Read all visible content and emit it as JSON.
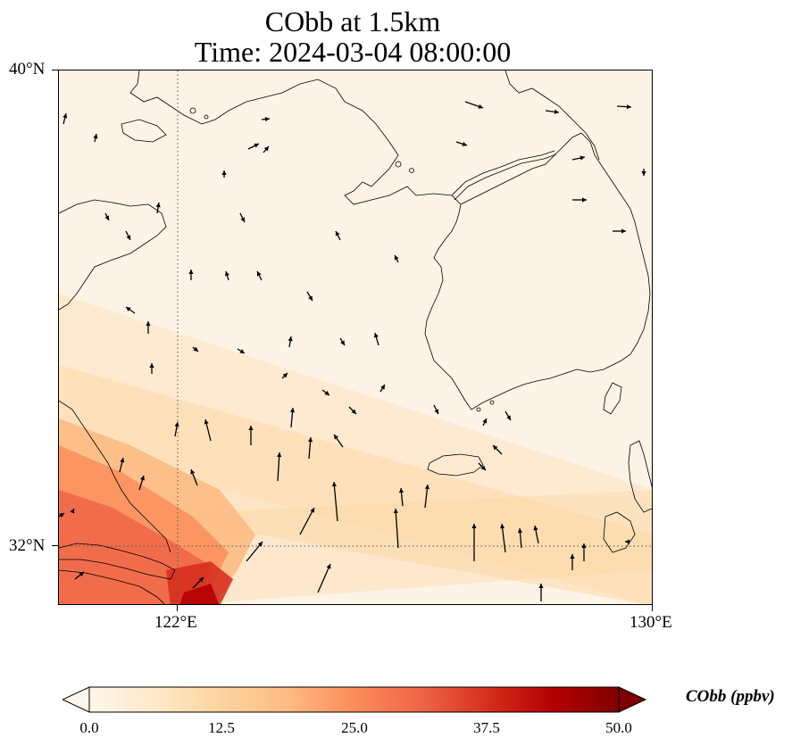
{
  "title": {
    "line1": "CObb at 1.5km",
    "line2": "Time: 2024-03-04 08:00:00"
  },
  "map": {
    "lon_range": [
      120,
      130
    ],
    "lat_range": [
      31,
      40
    ],
    "lon_ticks": [
      {
        "value": 122,
        "label": "122°E"
      },
      {
        "value": 130,
        "label": "130°E"
      }
    ],
    "lat_ticks": [
      {
        "value": 40,
        "label": "40°N"
      },
      {
        "value": 32,
        "label": "32°N"
      }
    ],
    "gridlines": "dotted"
  },
  "colorbar": {
    "label": "CObb (ppbv)",
    "min": 0,
    "max": 50,
    "extend": "both",
    "ticks": [
      "0.0",
      "12.5",
      "25.0",
      "37.5",
      "50.0"
    ],
    "colormap": [
      "#fff7ec",
      "#fee8c8",
      "#fdd49e",
      "#fdbb84",
      "#fc8d59",
      "#ef6548",
      "#d7301f",
      "#b30000",
      "#7f0000"
    ]
  }
}
